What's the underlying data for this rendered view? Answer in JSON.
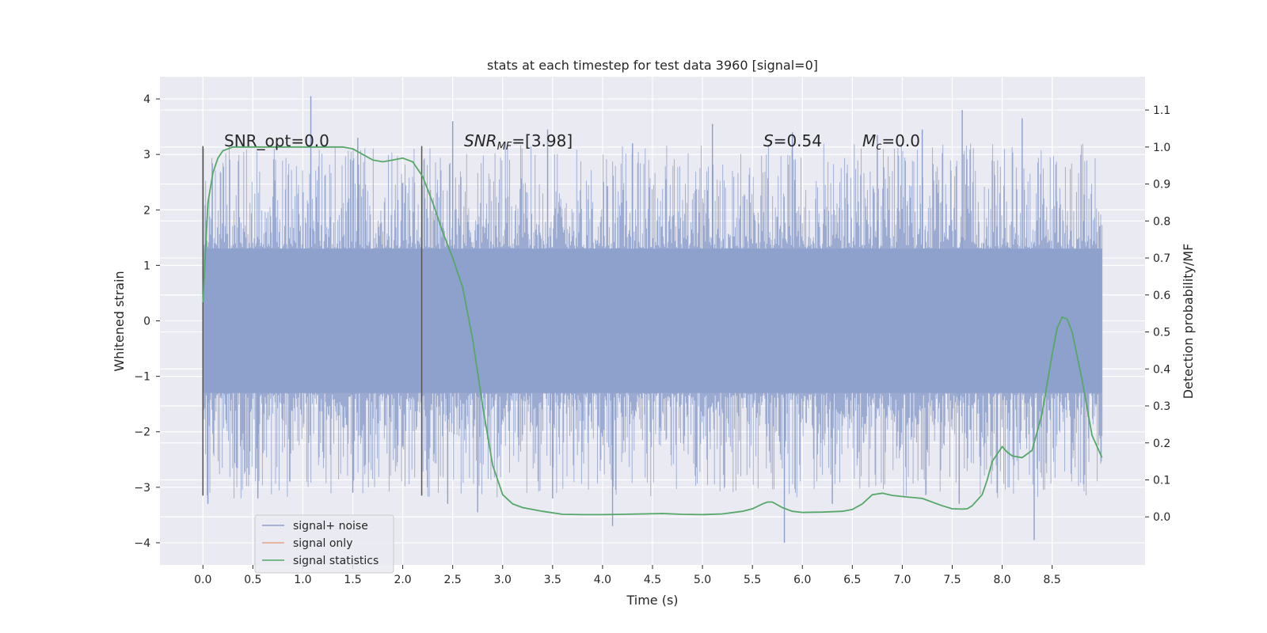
{
  "chart_data": {
    "type": "line",
    "title": "stats at each timestep for test data 3960 [signal=0]",
    "xlabel": "Time (s)",
    "ylabel_left": "Whitened strain",
    "ylabel_right": "Detection probability/MF",
    "xlim": [
      -0.43,
      9.43
    ],
    "ylim_left": [
      -4.4,
      4.4
    ],
    "ylim_right": [
      -0.13,
      1.19
    ],
    "x_ticks": [
      "0.0",
      "0.5",
      "1.0",
      "1.5",
      "2.0",
      "2.5",
      "3.0",
      "3.5",
      "4.0",
      "4.5",
      "5.0",
      "5.5",
      "6.0",
      "6.5",
      "7.0",
      "7.5",
      "8.0",
      "8.5"
    ],
    "y_left_ticks": [
      "4",
      "3",
      "2",
      "1",
      "0",
      "−1",
      "−2",
      "−3",
      "−4"
    ],
    "y_right_ticks": [
      "1.1",
      "1.0",
      "0.9",
      "0.8",
      "0.7",
      "0.6",
      "0.5",
      "0.4",
      "0.3",
      "0.2",
      "0.1",
      "0.0"
    ],
    "annotations": {
      "snr_opt": "SNR_opt=0.0",
      "snr_mf_main": "SNR",
      "snr_mf_sub": "MF",
      "snr_mf_value": "=[3.98]",
      "s_symbol": "S",
      "s_value": "=0.54",
      "mc_symbol": "M",
      "mc_sub": "c",
      "mc_value": "=0.0"
    },
    "vertical_markers": [
      0.0,
      2.19
    ],
    "marker_ylim": [
      -3.15,
      3.15
    ],
    "noise": {
      "x_start": 0.0,
      "x_end": 9.0,
      "core_band": [
        -1.3,
        1.3
      ],
      "max_peaks": [
        {
          "x": 1.08,
          "y": 4.05
        },
        {
          "x": 7.6,
          "y": 3.8
        },
        {
          "x": 8.2,
          "y": 3.65
        },
        {
          "x": 2.5,
          "y": 3.6
        },
        {
          "x": 5.1,
          "y": 3.55
        },
        {
          "x": 3.45,
          "y": 3.45
        },
        {
          "x": 7.2,
          "y": 3.45
        },
        {
          "x": 5.9,
          "y": 3.4
        },
        {
          "x": 1.55,
          "y": 3.3
        },
        {
          "x": 6.75,
          "y": 3.35
        },
        {
          "x": 4.3,
          "y": 3.2
        }
      ],
      "min_peaks": [
        {
          "x": 5.82,
          "y": -4.0
        },
        {
          "x": 8.32,
          "y": -3.95
        },
        {
          "x": 4.1,
          "y": -3.7
        },
        {
          "x": 2.75,
          "y": -3.45
        },
        {
          "x": 0.05,
          "y": -3.3
        },
        {
          "x": 2.45,
          "y": -3.3
        },
        {
          "x": 6.3,
          "y": -3.3
        },
        {
          "x": 7.57,
          "y": -3.3
        },
        {
          "x": 0.55,
          "y": -3.2
        },
        {
          "x": 1.5,
          "y": -3.1
        },
        {
          "x": 3.5,
          "y": -3.2
        },
        {
          "x": 7.95,
          "y": -3.1
        }
      ]
    },
    "series": [
      {
        "name": "signal+ noise",
        "color": "#8c9fcb",
        "axis": "left",
        "kind": "noise"
      },
      {
        "name": "signal only",
        "color": "#e3a386",
        "axis": "left",
        "x": [],
        "y": []
      },
      {
        "name": "signal statistics",
        "color": "#55a868",
        "axis": "right",
        "x": [
          0.0,
          0.05,
          0.1,
          0.15,
          0.2,
          0.3,
          0.5,
          0.8,
          1.0,
          1.2,
          1.4,
          1.5,
          1.6,
          1.7,
          1.8,
          1.9,
          2.0,
          2.1,
          2.2,
          2.3,
          2.4,
          2.5,
          2.6,
          2.7,
          2.8,
          2.9,
          3.0,
          3.1,
          3.2,
          3.4,
          3.6,
          3.8,
          4.0,
          4.2,
          4.4,
          4.6,
          4.8,
          5.0,
          5.2,
          5.4,
          5.5,
          5.6,
          5.65,
          5.7,
          5.8,
          5.9,
          6.0,
          6.2,
          6.4,
          6.5,
          6.6,
          6.7,
          6.8,
          6.9,
          7.0,
          7.2,
          7.4,
          7.5,
          7.6,
          7.65,
          7.7,
          7.8,
          7.85,
          7.9,
          8.0,
          8.05,
          8.1,
          8.2,
          8.3,
          8.4,
          8.5,
          8.55,
          8.6,
          8.65,
          8.7,
          8.8,
          8.9,
          9.0
        ],
        "y": [
          0.58,
          0.85,
          0.93,
          0.97,
          0.99,
          1.0,
          1.0,
          1.0,
          1.0,
          1.0,
          1.0,
          0.995,
          0.98,
          0.965,
          0.96,
          0.965,
          0.97,
          0.96,
          0.92,
          0.85,
          0.77,
          0.7,
          0.62,
          0.48,
          0.3,
          0.14,
          0.06,
          0.035,
          0.025,
          0.015,
          0.007,
          0.006,
          0.006,
          0.007,
          0.008,
          0.009,
          0.007,
          0.006,
          0.008,
          0.015,
          0.022,
          0.035,
          0.04,
          0.04,
          0.025,
          0.015,
          0.012,
          0.013,
          0.015,
          0.02,
          0.035,
          0.06,
          0.064,
          0.058,
          0.055,
          0.05,
          0.03,
          0.022,
          0.021,
          0.022,
          0.03,
          0.06,
          0.1,
          0.15,
          0.19,
          0.175,
          0.165,
          0.16,
          0.18,
          0.28,
          0.44,
          0.51,
          0.54,
          0.535,
          0.5,
          0.37,
          0.22,
          0.16
        ]
      }
    ],
    "legend_position": "lower-left"
  }
}
